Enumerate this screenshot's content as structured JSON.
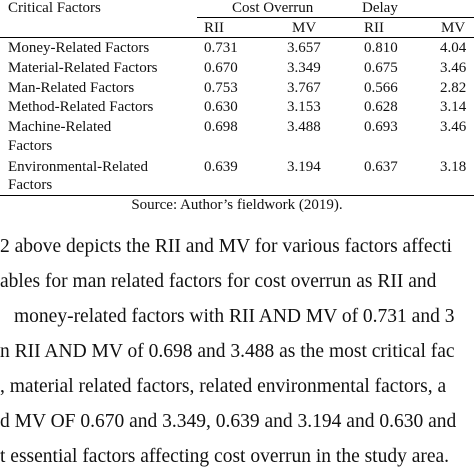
{
  "table": {
    "header": {
      "critical_factors": "Critical Factors",
      "cost_overrun": "Cost Overrun",
      "delay": "Delay",
      "sub": [
        "RII",
        "MV",
        "RII",
        "MV"
      ]
    },
    "rows": [
      {
        "factor": [
          "Money-Related Factors"
        ],
        "values": [
          "0.731",
          "3.657",
          "0.810",
          "4.04"
        ]
      },
      {
        "factor": [
          "Material-Related Factors"
        ],
        "values": [
          "0.670",
          "3.349",
          "0.675",
          "3.46"
        ]
      },
      {
        "factor": [
          "Man-Related Factors"
        ],
        "values": [
          "0.753",
          "3.767",
          "0.566",
          "2.82"
        ]
      },
      {
        "factor": [
          "Method-Related Factors"
        ],
        "values": [
          "0.630",
          "3.153",
          "0.628",
          "3.14"
        ]
      },
      {
        "factor": [
          "Machine-Related",
          "Factors"
        ],
        "values": [
          "0.698",
          "3.488",
          "0.693",
          "3.46"
        ]
      },
      {
        "factor": [
          "Environmental-Related",
          "Factors"
        ],
        "values": [
          "0.639",
          "3.194",
          "0.637",
          "3.18"
        ]
      }
    ],
    "source": "Source: Author’s fieldwork (2019)."
  },
  "paragraph": [
    "2 above depicts the RII and MV for various factors affecti",
    "ables for man related factors for cost overrun as RII and",
    "money-related factors with RII AND MV of 0.731 and 3",
    "n RII AND MV of 0.698 and 3.488 as the most critical fac",
    ", material related factors, related environmental factors, a",
    "d MV OF 0.670 and 3.349, 0.639 and 3.194 and 0.630 and",
    "t essential factors affecting cost overrun in the study area."
  ]
}
